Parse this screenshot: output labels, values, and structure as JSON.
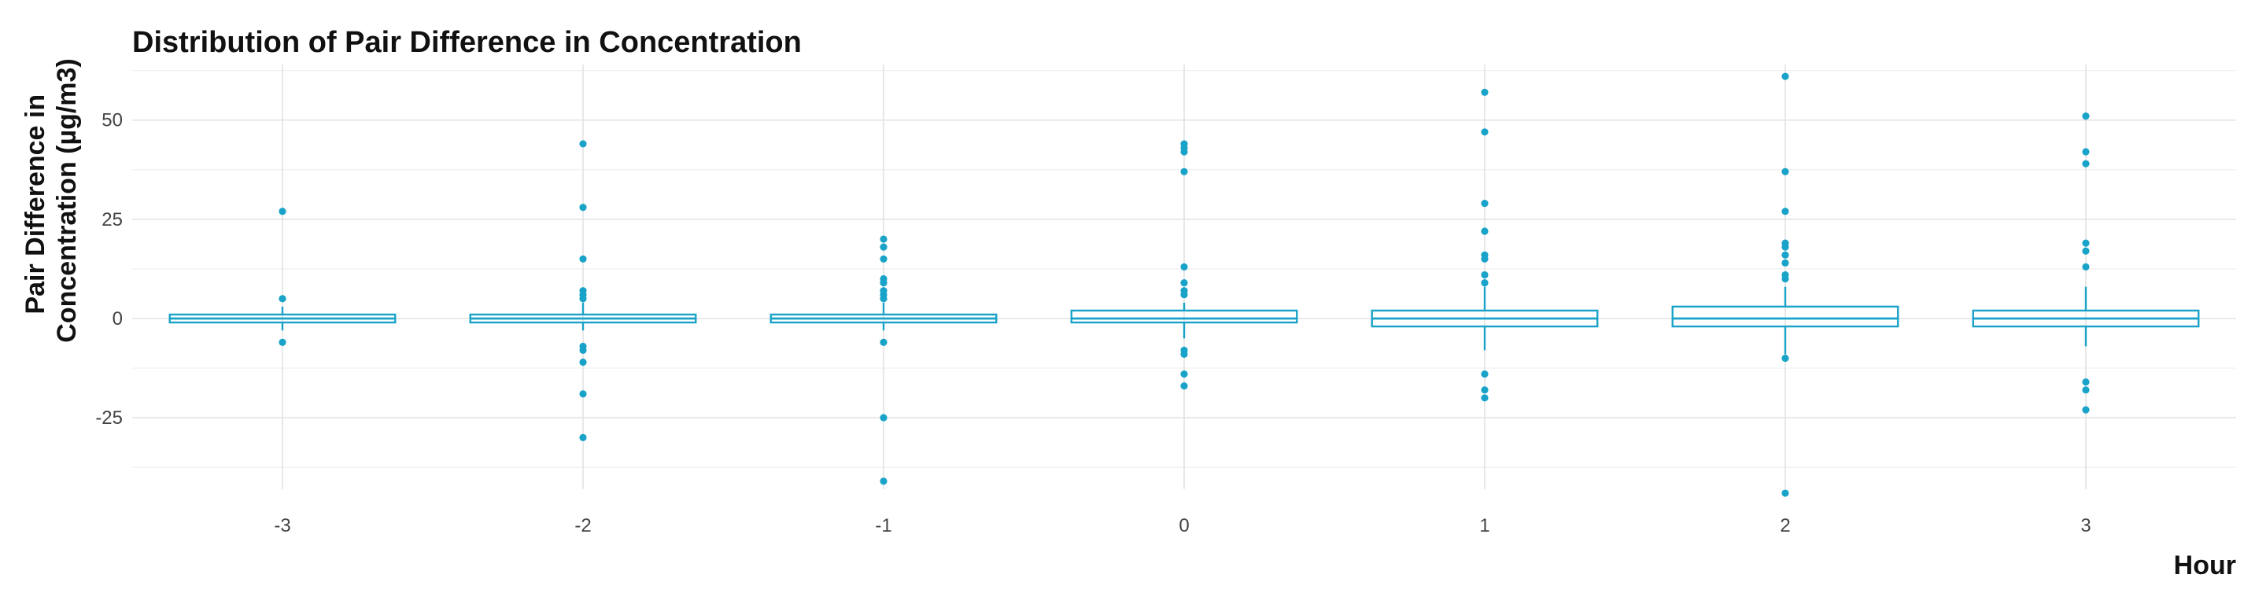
{
  "chart_data": {
    "type": "box",
    "title": "Distribution of Pair Difference in Concentration",
    "xlabel": "Hour",
    "ylabel_lines": [
      "Pair Difference in",
      "Concentration (µg/m3)"
    ],
    "ylim": [
      -43,
      64
    ],
    "yticks": [
      -25,
      0,
      25,
      50
    ],
    "grid": true,
    "color": "#1aa3c8",
    "categories": [
      "-3",
      "-2",
      "-1",
      "0",
      "1",
      "2",
      "3"
    ],
    "boxes": [
      {
        "x": "-3",
        "q1": -1,
        "median": 0,
        "q3": 1,
        "whisker_low": -3,
        "whisker_high": 3,
        "outliers": [
          27,
          5,
          -6
        ]
      },
      {
        "x": "-2",
        "q1": -1,
        "median": 0,
        "q3": 1,
        "whisker_low": -3,
        "whisker_high": 4,
        "outliers": [
          44,
          28,
          15,
          7,
          6,
          5,
          -7,
          -8,
          -11,
          -19,
          -30
        ]
      },
      {
        "x": "-1",
        "q1": -1,
        "median": 0,
        "q3": 1,
        "whisker_low": -3,
        "whisker_high": 4,
        "outliers": [
          20,
          18,
          15,
          10,
          9,
          7,
          6,
          5,
          -6,
          -25,
          -41
        ]
      },
      {
        "x": "0",
        "q1": -1,
        "median": 0,
        "q3": 2,
        "whisker_low": -5,
        "whisker_high": 4,
        "outliers": [
          44,
          43,
          42,
          37,
          13,
          9,
          7,
          6,
          -8,
          -9,
          -14,
          -17
        ]
      },
      {
        "x": "1",
        "q1": -2,
        "median": 0,
        "q3": 2,
        "whisker_low": -8,
        "whisker_high": 8,
        "outliers": [
          57,
          47,
          29,
          22,
          16,
          15,
          11,
          9,
          -14,
          -18,
          -20
        ]
      },
      {
        "x": "2",
        "q1": -2,
        "median": 0,
        "q3": 3,
        "whisker_low": -9,
        "whisker_high": 8,
        "outliers": [
          61,
          37,
          27,
          19,
          18,
          16,
          14,
          11,
          10,
          -10,
          -44
        ]
      },
      {
        "x": "3",
        "q1": -2,
        "median": 0,
        "q3": 2,
        "whisker_low": -7,
        "whisker_high": 8,
        "outliers": [
          51,
          42,
          39,
          19,
          17,
          13,
          -16,
          -18,
          -23
        ]
      }
    ]
  }
}
